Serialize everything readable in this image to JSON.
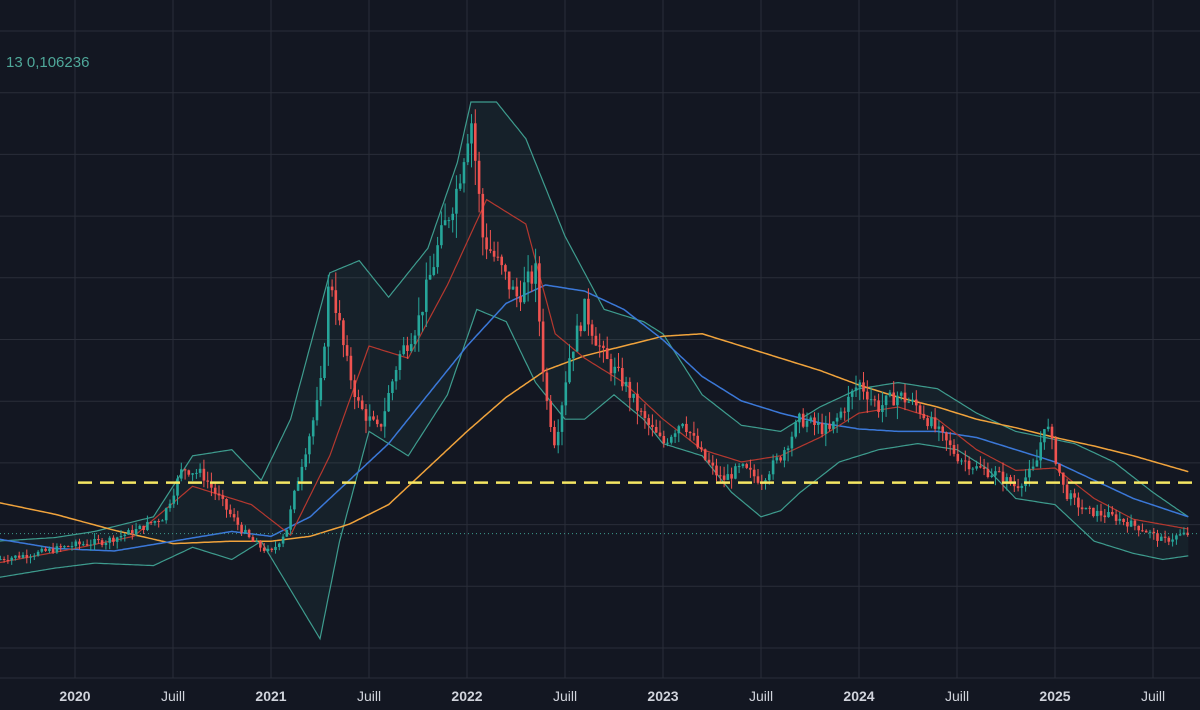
{
  "legend": {
    "prefix": "13",
    "value": "0,106236"
  },
  "chart_data": {
    "type": "candlestick",
    "title": "",
    "x_tick_labels": [
      {
        "label": "2020",
        "t": 2020.0,
        "bold": true
      },
      {
        "label": "Juill",
        "t": 2020.5,
        "bold": false
      },
      {
        "label": "2021",
        "t": 2021.0,
        "bold": true
      },
      {
        "label": "Juill",
        "t": 2021.5,
        "bold": false
      },
      {
        "label": "2022",
        "t": 2022.0,
        "bold": true
      },
      {
        "label": "Juill",
        "t": 2022.5,
        "bold": false
      },
      {
        "label": "2023",
        "t": 2023.0,
        "bold": true
      },
      {
        "label": "Juill",
        "t": 2023.5,
        "bold": false
      },
      {
        "label": "2024",
        "t": 2024.0,
        "bold": true
      },
      {
        "label": "Juill",
        "t": 2024.5,
        "bold": false
      },
      {
        "label": "2025",
        "t": 2025.0,
        "bold": true
      },
      {
        "label": "Juill",
        "t": 2025.5,
        "bold": false
      }
    ],
    "xlim": [
      2019.6,
      2025.7
    ],
    "ylim": [
      0.0,
      0.5
    ],
    "grid": true,
    "last_price": 0.106236,
    "support_level": 0.148,
    "colors": {
      "up": "#26a69a",
      "down": "#ef5350",
      "ma_fast": "#b5382f",
      "ma_mid": "#3b78d8",
      "ma_slow": "#f0a33c",
      "bands": "#3e9c8e",
      "band_fill": "rgba(62,156,142,0.08)",
      "support": "#f5e663",
      "price_line": "#3e9c8e",
      "grid": "#2a2e39",
      "background": "#131722"
    },
    "series": [
      {
        "kind": "price",
        "t": [
          2019.6,
          2019.8,
          2020.0,
          2020.15,
          2020.3,
          2020.45,
          2020.55,
          2020.65,
          2020.8,
          2020.9,
          2021.0,
          2021.08,
          2021.15,
          2021.25,
          2021.3,
          2021.38,
          2021.45,
          2021.55,
          2021.65,
          2021.75,
          2021.85,
          2021.95,
          2022.02,
          2022.08,
          2022.15,
          2022.25,
          2022.35,
          2022.4,
          2022.45,
          2022.52,
          2022.6,
          2022.7,
          2022.8,
          2022.9,
          2023.0,
          2023.1,
          2023.2,
          2023.3,
          2023.4,
          2023.5,
          2023.6,
          2023.7,
          2023.85,
          2024.0,
          2024.1,
          2024.2,
          2024.3,
          2024.4,
          2024.5,
          2024.6,
          2024.7,
          2024.8,
          2024.9,
          2024.95,
          2025.05,
          2025.15,
          2025.3,
          2025.45,
          2025.55,
          2025.62,
          2025.68
        ],
        "v": [
          0.085,
          0.09,
          0.097,
          0.1,
          0.108,
          0.12,
          0.16,
          0.155,
          0.12,
          0.1,
          0.09,
          0.11,
          0.16,
          0.22,
          0.32,
          0.25,
          0.21,
          0.19,
          0.25,
          0.28,
          0.34,
          0.39,
          0.45,
          0.35,
          0.33,
          0.3,
          0.32,
          0.22,
          0.18,
          0.25,
          0.29,
          0.25,
          0.23,
          0.2,
          0.18,
          0.2,
          0.17,
          0.15,
          0.16,
          0.15,
          0.17,
          0.2,
          0.19,
          0.23,
          0.21,
          0.22,
          0.21,
          0.19,
          0.17,
          0.16,
          0.155,
          0.145,
          0.16,
          0.2,
          0.14,
          0.125,
          0.12,
          0.11,
          0.1,
          0.104,
          0.106
        ]
      },
      {
        "kind": "ma_fast",
        "t": [
          2019.6,
          2020.0,
          2020.3,
          2020.6,
          2020.9,
          2021.1,
          2021.3,
          2021.5,
          2021.7,
          2021.9,
          2022.1,
          2022.3,
          2022.45,
          2022.6,
          2022.8,
          2023.0,
          2023.2,
          2023.4,
          2023.6,
          2023.8,
          2024.0,
          2024.2,
          2024.4,
          2024.6,
          2024.8,
          2025.0,
          2025.2,
          2025.4,
          2025.68
        ],
        "v": [
          0.082,
          0.094,
          0.104,
          0.145,
          0.13,
          0.105,
          0.17,
          0.26,
          0.25,
          0.31,
          0.38,
          0.36,
          0.27,
          0.25,
          0.23,
          0.2,
          0.175,
          0.165,
          0.17,
          0.185,
          0.205,
          0.21,
          0.2,
          0.175,
          0.158,
          0.16,
          0.135,
          0.118,
          0.11
        ]
      },
      {
        "kind": "ma_mid",
        "t": [
          2019.6,
          2019.9,
          2020.2,
          2020.5,
          2020.8,
          2021.0,
          2021.2,
          2021.4,
          2021.6,
          2021.8,
          2022.0,
          2022.2,
          2022.4,
          2022.6,
          2022.8,
          2023.0,
          2023.2,
          2023.4,
          2023.6,
          2023.8,
          2024.0,
          2024.2,
          2024.4,
          2024.6,
          2024.8,
          2025.0,
          2025.2,
          2025.4,
          2025.68
        ],
        "v": [
          0.102,
          0.094,
          0.092,
          0.1,
          0.108,
          0.104,
          0.12,
          0.15,
          0.18,
          0.22,
          0.26,
          0.295,
          0.31,
          0.305,
          0.29,
          0.265,
          0.235,
          0.215,
          0.205,
          0.197,
          0.192,
          0.19,
          0.19,
          0.185,
          0.175,
          0.165,
          0.15,
          0.135,
          0.12
        ]
      },
      {
        "kind": "ma_slow",
        "t": [
          2019.6,
          2019.9,
          2020.2,
          2020.5,
          2020.8,
          2021.0,
          2021.2,
          2021.4,
          2021.6,
          2021.8,
          2022.0,
          2022.2,
          2022.4,
          2022.6,
          2022.8,
          2023.0,
          2023.2,
          2023.4,
          2023.6,
          2023.8,
          2024.0,
          2024.2,
          2024.4,
          2024.6,
          2024.8,
          2025.0,
          2025.2,
          2025.4,
          2025.68
        ],
        "v": [
          0.132,
          0.122,
          0.109,
          0.098,
          0.1,
          0.1,
          0.104,
          0.114,
          0.13,
          0.16,
          0.19,
          0.218,
          0.24,
          0.252,
          0.26,
          0.268,
          0.27,
          0.26,
          0.25,
          0.24,
          0.228,
          0.218,
          0.21,
          0.2,
          0.193,
          0.185,
          0.178,
          0.17,
          0.157
        ]
      },
      {
        "kind": "band_upper",
        "t": [
          2019.6,
          2019.9,
          2020.1,
          2020.4,
          2020.6,
          2020.8,
          2020.95,
          2021.1,
          2021.3,
          2021.45,
          2021.6,
          2021.8,
          2021.95,
          2022.02,
          2022.15,
          2022.3,
          2022.5,
          2022.7,
          2022.9,
          2023.0,
          2023.2,
          2023.4,
          2023.6,
          2023.8,
          2024.0,
          2024.2,
          2024.4,
          2024.6,
          2024.8,
          2024.95,
          2025.1,
          2025.3,
          2025.5,
          2025.68
        ],
        "v": [
          0.1,
          0.103,
          0.108,
          0.12,
          0.17,
          0.175,
          0.15,
          0.2,
          0.32,
          0.33,
          0.3,
          0.34,
          0.41,
          0.46,
          0.46,
          0.43,
          0.35,
          0.29,
          0.28,
          0.27,
          0.22,
          0.195,
          0.19,
          0.21,
          0.225,
          0.23,
          0.225,
          0.205,
          0.19,
          0.185,
          0.18,
          0.165,
          0.14,
          0.12
        ]
      },
      {
        "kind": "band_lower",
        "t": [
          2019.6,
          2019.9,
          2020.1,
          2020.4,
          2020.6,
          2020.8,
          2020.95,
          2021.1,
          2021.25,
          2021.35,
          2021.5,
          2021.7,
          2021.9,
          2022.05,
          2022.2,
          2022.35,
          2022.5,
          2022.6,
          2022.75,
          2022.9,
          2023.0,
          2023.2,
          2023.35,
          2023.5,
          2023.6,
          2023.7,
          2023.9,
          2024.1,
          2024.3,
          2024.5,
          2024.65,
          2024.8,
          2025.0,
          2025.2,
          2025.4,
          2025.55,
          2025.68
        ],
        "v": [
          0.07,
          0.078,
          0.082,
          0.08,
          0.095,
          0.085,
          0.1,
          0.06,
          0.02,
          0.1,
          0.19,
          0.17,
          0.22,
          0.29,
          0.28,
          0.23,
          0.2,
          0.2,
          0.22,
          0.2,
          0.18,
          0.17,
          0.14,
          0.12,
          0.125,
          0.14,
          0.165,
          0.175,
          0.18,
          0.175,
          0.16,
          0.135,
          0.13,
          0.1,
          0.09,
          0.085,
          0.088
        ]
      }
    ]
  }
}
